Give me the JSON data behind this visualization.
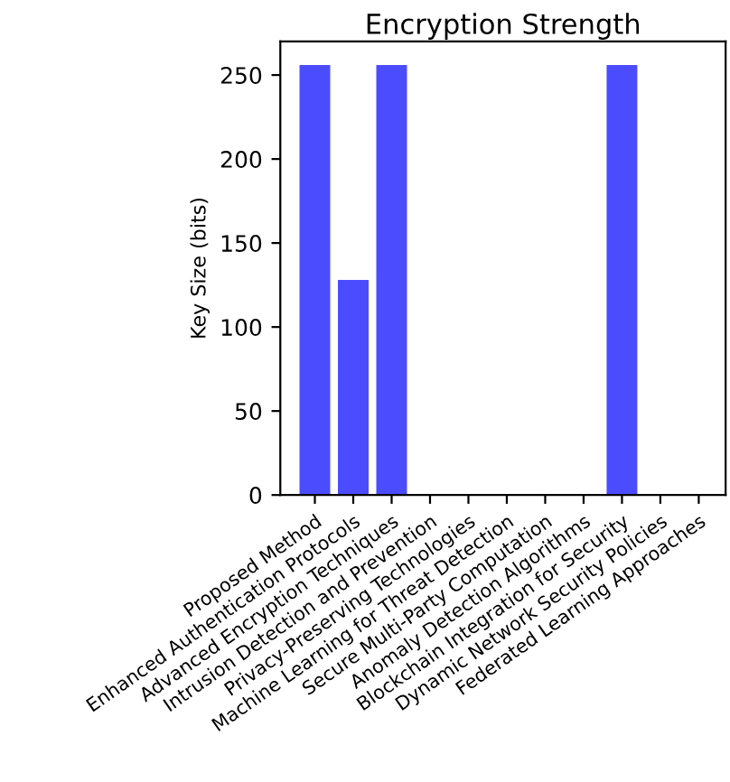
{
  "chart_data": {
    "type": "bar",
    "title": "Encryption Strength",
    "ylabel": "Key Size (bits)",
    "categories": [
      "Proposed Method",
      "Enhanced Authentication Protocols",
      "Advanced Encryption Techniques",
      "Intrusion Detection and Prevention",
      "Privacy-Preserving Technologies",
      "Machine Learning for Threat Detection",
      "Secure Multi-Party Computation",
      "Anomaly Detection Algorithms",
      "Blockchain Integration for Security",
      "Dynamic Network Security Policies",
      "Federated Learning Approaches"
    ],
    "values": [
      256,
      128,
      256,
      0,
      0,
      0,
      0,
      0,
      256,
      0,
      0
    ],
    "color": "#4c4cff",
    "ylim": [
      0,
      270
    ],
    "yticks": [
      0,
      50,
      100,
      150,
      200,
      250
    ],
    "grid": false
  }
}
